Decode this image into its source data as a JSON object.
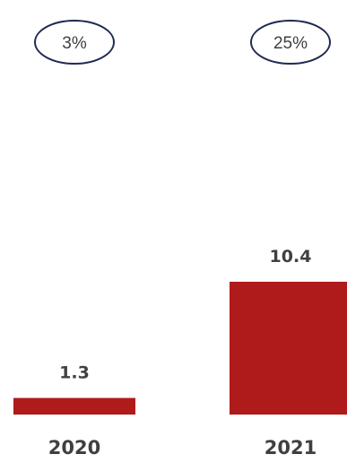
{
  "chart_data": {
    "type": "bar",
    "categories": [
      "2020",
      "2021"
    ],
    "values": [
      1.3,
      10.4
    ],
    "value_labels": [
      "1.3",
      "10.4"
    ],
    "growth_labels": [
      "3%",
      "25%"
    ],
    "title": "",
    "xlabel": "",
    "ylabel": "",
    "grid": false,
    "legend": "none"
  },
  "colors": {
    "bar": "#AF1A1A",
    "ellipse_stroke": "#1F2A52",
    "text": "#404040"
  }
}
